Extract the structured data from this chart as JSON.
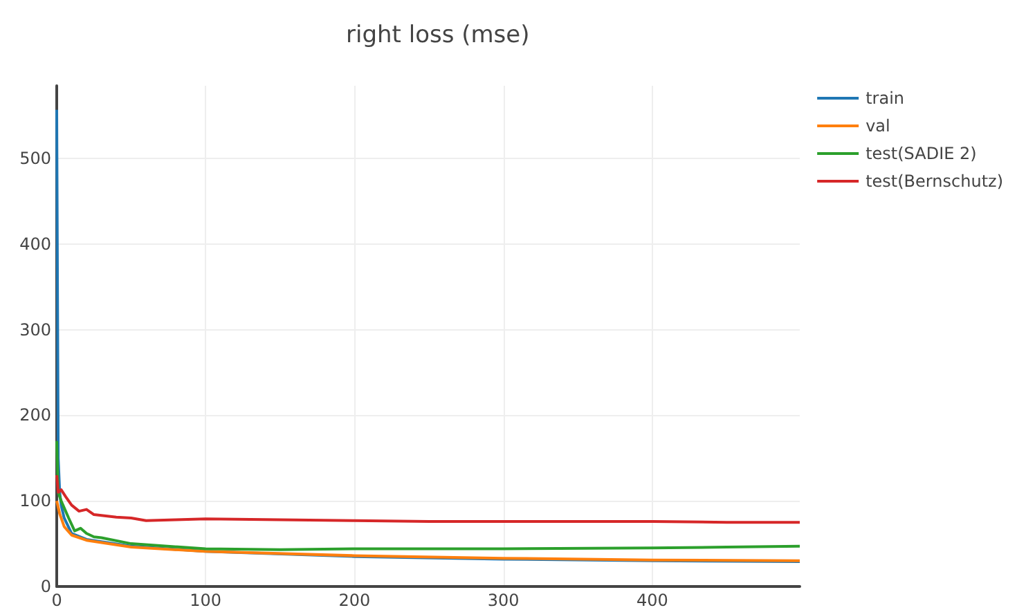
{
  "chart_data": {
    "type": "line",
    "title": "right loss (mse)",
    "xlim": [
      0,
      499
    ],
    "ylim": [
      0,
      585
    ],
    "xticks": [
      0,
      100,
      200,
      300,
      400
    ],
    "yticks": [
      0,
      100,
      200,
      300,
      400,
      500
    ],
    "grid": true,
    "legend": "top right",
    "marker": "none",
    "line_style": "solid",
    "series": [
      {
        "name": "train",
        "color": "#1f77b4",
        "x": [
          0,
          1,
          2,
          3,
          5,
          10,
          20,
          50,
          100,
          200,
          300,
          400,
          499
        ],
        "values": [
          557,
          150,
          110,
          95,
          80,
          62,
          55,
          47,
          41,
          35,
          32,
          30,
          29
        ]
      },
      {
        "name": "val",
        "color": "#ff7f0e",
        "x": [
          0,
          2,
          5,
          10,
          20,
          50,
          100,
          200,
          300,
          400,
          499
        ],
        "values": [
          100,
          85,
          70,
          60,
          54,
          46,
          41,
          36,
          33,
          31,
          30
        ]
      },
      {
        "name": "test(SADIE 2)",
        "color": "#2ca02c",
        "x": [
          0,
          1,
          3,
          8,
          12,
          16,
          20,
          25,
          30,
          50,
          100,
          150,
          200,
          300,
          400,
          450,
          499
        ],
        "values": [
          170,
          110,
          100,
          80,
          65,
          68,
          62,
          58,
          57,
          50,
          44,
          43,
          44,
          44,
          45,
          46,
          47
        ]
      },
      {
        "name": "test(Bernschutz)",
        "color": "#d62728",
        "x": [
          0,
          1,
          3,
          6,
          10,
          15,
          20,
          25,
          30,
          40,
          50,
          60,
          80,
          100,
          150,
          200,
          250,
          300,
          350,
          400,
          450,
          499
        ],
        "values": [
          130,
          110,
          113,
          105,
          95,
          88,
          90,
          84,
          83,
          81,
          80,
          77,
          78,
          79,
          78,
          77,
          76,
          76,
          76,
          76,
          75,
          75
        ]
      }
    ]
  }
}
